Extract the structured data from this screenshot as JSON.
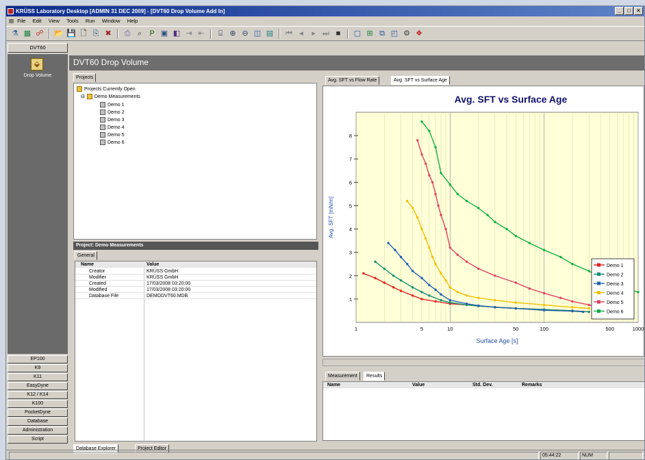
{
  "window": {
    "title": "KRÜSS Laboratory Desktop [ADMIN 31 DEC 2009] - [DVT60 Drop Volume Add In]"
  },
  "menu": [
    "File",
    "Edit",
    "View",
    "Tools",
    "Run",
    "Window",
    "Help"
  ],
  "sidebar": {
    "header": "DVT60",
    "active_item": "Drop Volume",
    "buttons": [
      "EP100",
      "K9",
      "K11",
      "EasyDyne",
      "K12 / K14",
      "K100",
      "PocketDyne",
      "Database",
      "Administration",
      "Script"
    ]
  },
  "header": {
    "title": "DVT60 Drop Volume"
  },
  "projects": {
    "tab": "Projects",
    "root": "Projects Currently Open",
    "group": "Demo Measurements",
    "items": [
      "Demo 1",
      "Demo 2",
      "Demo 3",
      "Demo 4",
      "Demo 5",
      "Demo 6"
    ]
  },
  "properties": {
    "header": "Project: Demo Measurements",
    "tab": "General",
    "columns": [
      "Name",
      "Value"
    ],
    "rows": [
      [
        "Creator",
        "KRÜSS GmbH"
      ],
      [
        "Modifier",
        "KRÜSS GmbH"
      ],
      [
        "Created",
        "17/03/2008 03:20:00"
      ],
      [
        "Modified",
        "17/03/2008 03:20:00"
      ],
      [
        "Database File",
        "DEMODVT60.MDB"
      ]
    ]
  },
  "bottom_tabs": [
    "Database Explorer",
    "Project Editor"
  ],
  "chart_tabs": [
    "Avg. SFT vs Flow Rate",
    "Avg. SFT vs Surface Age"
  ],
  "chart_data": {
    "type": "line",
    "title": "Avg. SFT vs Surface Age",
    "xlabel": "Surface Age [s]",
    "ylabel": "Avg. SFT [mN/m]",
    "x_scale": "log",
    "xlim": [
      1,
      1000
    ],
    "ylim": [
      0,
      9
    ],
    "x_ticks": [
      "1",
      "5",
      "10",
      "50",
      "100",
      "500",
      "1000"
    ],
    "y_ticks": [
      "1",
      "2",
      "3",
      "4",
      "5",
      "6",
      "7",
      "8"
    ],
    "legend_position": "right",
    "series": [
      {
        "name": "Demo 1",
        "color": "#e02020",
        "points": [
          [
            1.2,
            2.1
          ],
          [
            1.6,
            1.9
          ],
          [
            2,
            1.7
          ],
          [
            2.5,
            1.5
          ],
          [
            3,
            1.35
          ],
          [
            4,
            1.15
          ],
          [
            5,
            1.0
          ],
          [
            7,
            0.9
          ],
          [
            10,
            0.8
          ],
          [
            15,
            0.75
          ],
          [
            20,
            0.7
          ],
          [
            30,
            0.65
          ],
          [
            50,
            0.6
          ],
          [
            100,
            0.55
          ],
          [
            200,
            0.5
          ],
          [
            300,
            0.45
          ]
        ]
      },
      {
        "name": "Demo 2",
        "color": "#109070",
        "points": [
          [
            1.6,
            2.6
          ],
          [
            2,
            2.3
          ],
          [
            2.5,
            2.0
          ],
          [
            3,
            1.8
          ],
          [
            4,
            1.5
          ],
          [
            5,
            1.3
          ],
          [
            6,
            1.15
          ],
          [
            8,
            0.95
          ],
          [
            10,
            0.85
          ],
          [
            15,
            0.75
          ],
          [
            20,
            0.7
          ],
          [
            30,
            0.65
          ],
          [
            50,
            0.6
          ],
          [
            100,
            0.55
          ],
          [
            200,
            0.5
          ],
          [
            300,
            0.45
          ]
        ]
      },
      {
        "name": "Demo 3",
        "color": "#2060b0",
        "points": [
          [
            2.2,
            3.4
          ],
          [
            2.6,
            3.1
          ],
          [
            3,
            2.8
          ],
          [
            3.5,
            2.5
          ],
          [
            4,
            2.2
          ],
          [
            5,
            1.9
          ],
          [
            6,
            1.6
          ],
          [
            7,
            1.4
          ],
          [
            8,
            1.2
          ],
          [
            10,
            0.95
          ],
          [
            15,
            0.8
          ],
          [
            20,
            0.72
          ],
          [
            30,
            0.65
          ],
          [
            50,
            0.6
          ],
          [
            100,
            0.52
          ],
          [
            200,
            0.48
          ],
          [
            260,
            0.45
          ]
        ]
      },
      {
        "name": "Demo 4",
        "color": "#f0c000",
        "points": [
          [
            3.5,
            5.2
          ],
          [
            4,
            4.9
          ],
          [
            4.5,
            4.5
          ],
          [
            5,
            4.0
          ],
          [
            5.5,
            3.6
          ],
          [
            6,
            3.2
          ],
          [
            6.5,
            2.8
          ],
          [
            7,
            2.5
          ],
          [
            8,
            2.1
          ],
          [
            9,
            1.8
          ],
          [
            10,
            1.5
          ],
          [
            12,
            1.3
          ],
          [
            15,
            1.15
          ],
          [
            20,
            1.05
          ],
          [
            30,
            0.95
          ],
          [
            50,
            0.85
          ],
          [
            100,
            0.75
          ],
          [
            200,
            0.65
          ],
          [
            300,
            0.6
          ]
        ]
      },
      {
        "name": "Demo 5",
        "color": "#e04060",
        "points": [
          [
            4.5,
            7.8
          ],
          [
            5,
            7.2
          ],
          [
            5.5,
            6.8
          ],
          [
            6,
            6.3
          ],
          [
            6.5,
            6.0
          ],
          [
            7,
            5.5
          ],
          [
            7.5,
            5.0
          ],
          [
            8,
            4.6
          ],
          [
            9,
            4.0
          ],
          [
            10,
            3.2
          ],
          [
            12,
            2.9
          ],
          [
            15,
            2.6
          ],
          [
            20,
            2.3
          ],
          [
            30,
            2.0
          ],
          [
            50,
            1.7
          ],
          [
            70,
            1.45
          ],
          [
            100,
            1.25
          ],
          [
            150,
            1.05
          ],
          [
            200,
            0.9
          ],
          [
            300,
            0.75
          ],
          [
            400,
            0.6
          ],
          [
            500,
            0.5
          ]
        ]
      },
      {
        "name": "Demo 6",
        "color": "#10b040",
        "points": [
          [
            5,
            8.6
          ],
          [
            6,
            8.2
          ],
          [
            7,
            7.5
          ],
          [
            8,
            6.4
          ],
          [
            10,
            5.9
          ],
          [
            12,
            5.5
          ],
          [
            15,
            5.2
          ],
          [
            20,
            4.9
          ],
          [
            25,
            4.6
          ],
          [
            30,
            4.3
          ],
          [
            40,
            4.0
          ],
          [
            50,
            3.7
          ],
          [
            70,
            3.4
          ],
          [
            100,
            3.1
          ],
          [
            150,
            2.8
          ],
          [
            200,
            2.5
          ],
          [
            300,
            2.2
          ],
          [
            400,
            1.9
          ],
          [
            500,
            1.7
          ],
          [
            600,
            1.55
          ],
          [
            800,
            1.4
          ],
          [
            1000,
            1.3
          ]
        ]
      }
    ]
  },
  "results": {
    "tabs": [
      "Measurement",
      "Results"
    ],
    "columns": [
      "Name",
      "Value",
      "Std. Dev.",
      "Remarks"
    ]
  },
  "status": {
    "time": "05:44:22",
    "mode": "NUM"
  }
}
